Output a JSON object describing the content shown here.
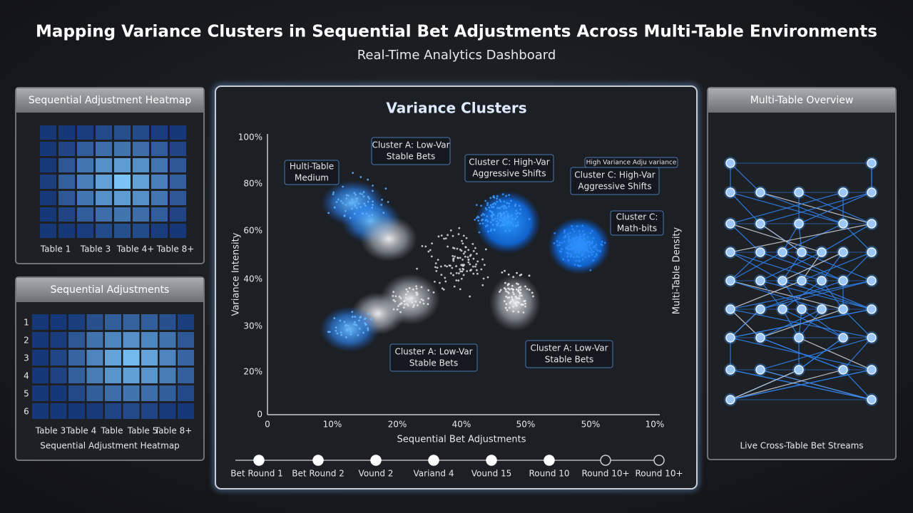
{
  "header": {
    "title": "Mapping Variance Clusters in Sequential Bet Adjustments Across Multi-Table Environments",
    "subtitle": "Real-Time Analytics Dashboard"
  },
  "heatmap_panel": {
    "title": "Sequential Adjustment Heatmap",
    "column_labels": [
      "Table 1",
      "Table 3",
      "Table 4+",
      "Table 8+"
    ]
  },
  "adjustments_panel": {
    "title": "Sequential Adjustments",
    "row_labels": [
      "1",
      "2",
      "3",
      "4",
      "5",
      "6"
    ],
    "column_labels": [
      "Table 3",
      "Table 4",
      "Table",
      "Table 5",
      "Table 8+"
    ],
    "caption": "Sequential Adjustment Heatmap"
  },
  "clusters_panel": {
    "title": "Variance Clusters",
    "y_axis_label": "Variance Intensity",
    "y2_axis_label": "Multi-Table Density",
    "x_axis_label": "Sequential Bet Adjustments",
    "y_tick_labels": [
      "100%",
      "80%",
      "60%",
      "40%",
      "30%",
      "20%",
      "0"
    ],
    "x_tick_labels": [
      "0",
      "10%",
      "20%",
      "40%",
      "50%",
      "50%",
      "10%"
    ],
    "annotations": [
      {
        "lines": [
          "Hulti-Table",
          "Medium"
        ]
      },
      {
        "lines": [
          "Cluster A: Low-Var",
          "Stable Bets"
        ]
      },
      {
        "lines": [
          "Cluster C: High-Var",
          "Aggressive Shifts"
        ]
      },
      {
        "lines": [
          "High Variance Adju variance"
        ]
      },
      {
        "lines": [
          "Cluster C: High-Var",
          "Aggressive Shifts"
        ]
      },
      {
        "lines": [
          "Cluster C:",
          "Math-bits"
        ]
      },
      {
        "lines": [
          "Cluster A: Low-Var",
          "Stable Bets"
        ]
      },
      {
        "lines": [
          "Cluster A: Low-Var",
          "Stable Bets"
        ]
      }
    ],
    "timeline": [
      "Bet Round 1",
      "Bet Round 2",
      "Vound 2",
      "Variand 4",
      "Vound 15",
      "Round 10",
      "Round 10+",
      "Round 10+"
    ]
  },
  "overview_panel": {
    "title": "Multi-Table Overview",
    "caption": "Live Cross-Table Bet Streams"
  }
}
